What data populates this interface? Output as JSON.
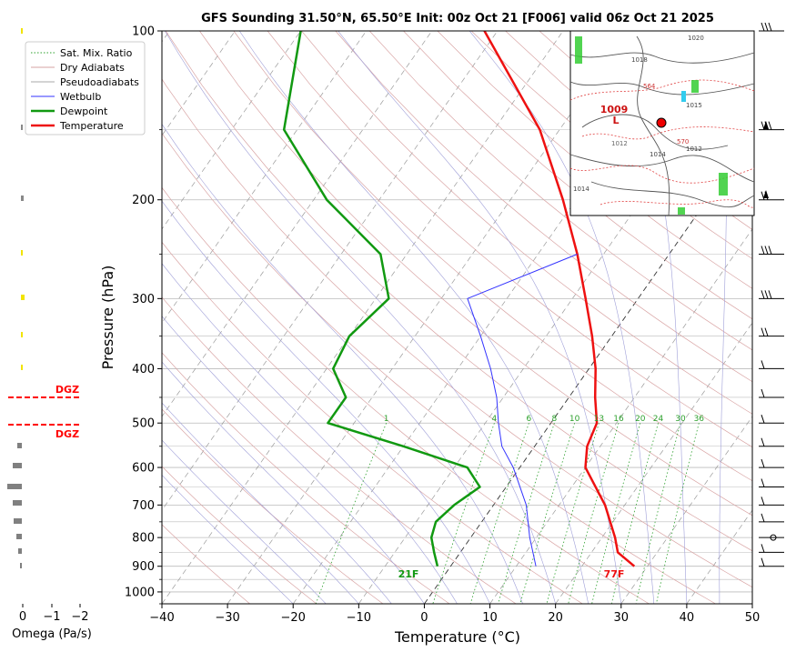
{
  "chart_data": {
    "type": "line",
    "title": "GFS Sounding 31.50°N, 65.50°E Init: 00z Oct 21 [F006] valid 06z Oct 21 2025",
    "xlabel": "Temperature (°C)",
    "ylabel": "Pressure (hPa)",
    "xlim": [
      -40,
      50
    ],
    "ylim": [
      1050,
      100
    ],
    "y_scale": "log",
    "skew": true,
    "x_ticks": [
      "−40",
      "−30",
      "−20",
      "−10",
      "0",
      "10",
      "20",
      "30",
      "40",
      "50"
    ],
    "y_ticks": [
      "100",
      "200",
      "300",
      "400",
      "500",
      "600",
      "700",
      "800",
      "900",
      "1000"
    ],
    "legend": {
      "placement": "top-left",
      "entries": [
        {
          "label": "Sat. Mix. Ratio",
          "color": "#2ca02c",
          "style": "dotted"
        },
        {
          "label": "Dry Adiabats",
          "color": "#d6a3a3",
          "style": "solid"
        },
        {
          "label": "Pseudoadiabats",
          "color": "#a9a9a9",
          "style": "solid"
        },
        {
          "label": "Wetbulb",
          "color": "#3333ff",
          "style": "solid"
        },
        {
          "label": "Dewpoint",
          "color": "#119911",
          "style": "solid"
        },
        {
          "label": "Temperature",
          "color": "#ee1111",
          "style": "solid"
        }
      ]
    },
    "series": [
      {
        "name": "Temperature",
        "color": "#ee1111",
        "points": [
          [
            900,
            28
          ],
          [
            850,
            24
          ],
          [
            800,
            22
          ],
          [
            700,
            17
          ],
          [
            600,
            10
          ],
          [
            550,
            8
          ],
          [
            500,
            7
          ],
          [
            450,
            4
          ],
          [
            400,
            1
          ],
          [
            350,
            -3
          ],
          [
            300,
            -8
          ],
          [
            250,
            -14
          ],
          [
            200,
            -22
          ],
          [
            150,
            -33
          ],
          [
            100,
            -52
          ]
        ]
      },
      {
        "name": "Dewpoint",
        "color": "#119911",
        "points": [
          [
            900,
            -2
          ],
          [
            850,
            -4
          ],
          [
            800,
            -6
          ],
          [
            750,
            -7
          ],
          [
            700,
            -6
          ],
          [
            650,
            -4
          ],
          [
            600,
            -8
          ],
          [
            550,
            -20
          ],
          [
            500,
            -34
          ],
          [
            450,
            -34
          ],
          [
            400,
            -39
          ],
          [
            350,
            -40
          ],
          [
            300,
            -38
          ],
          [
            250,
            -44
          ],
          [
            200,
            -58
          ],
          [
            150,
            -72
          ],
          [
            100,
            -80
          ]
        ]
      },
      {
        "name": "Wetbulb",
        "color": "#3333ff",
        "points": [
          [
            900,
            13
          ],
          [
            800,
            9
          ],
          [
            700,
            5
          ],
          [
            600,
            -1
          ],
          [
            550,
            -5
          ],
          [
            500,
            -8
          ],
          [
            450,
            -11
          ],
          [
            400,
            -15
          ],
          [
            350,
            -20
          ],
          [
            300,
            -26
          ],
          [
            250,
            -14
          ]
        ]
      }
    ],
    "mixing_ratio_labels": [
      "1",
      "4",
      "6",
      "8",
      "10",
      "13",
      "16",
      "20",
      "24",
      "30",
      "36"
    ],
    "surface_labels": {
      "dewpoint": "21F",
      "temperature": "77F"
    },
    "omega": {
      "xlabel": "Omega (Pa/s)",
      "x_ticks": [
        "0",
        "−1",
        "−2"
      ],
      "dgz_label": "DGZ"
    }
  },
  "inset_map": {
    "labels": [
      "1009",
      "L",
      "1012",
      "1014",
      "1012",
      "1014",
      "1018",
      "1020",
      "1015",
      "564",
      "570"
    ],
    "marker_color": "#ff0000"
  }
}
